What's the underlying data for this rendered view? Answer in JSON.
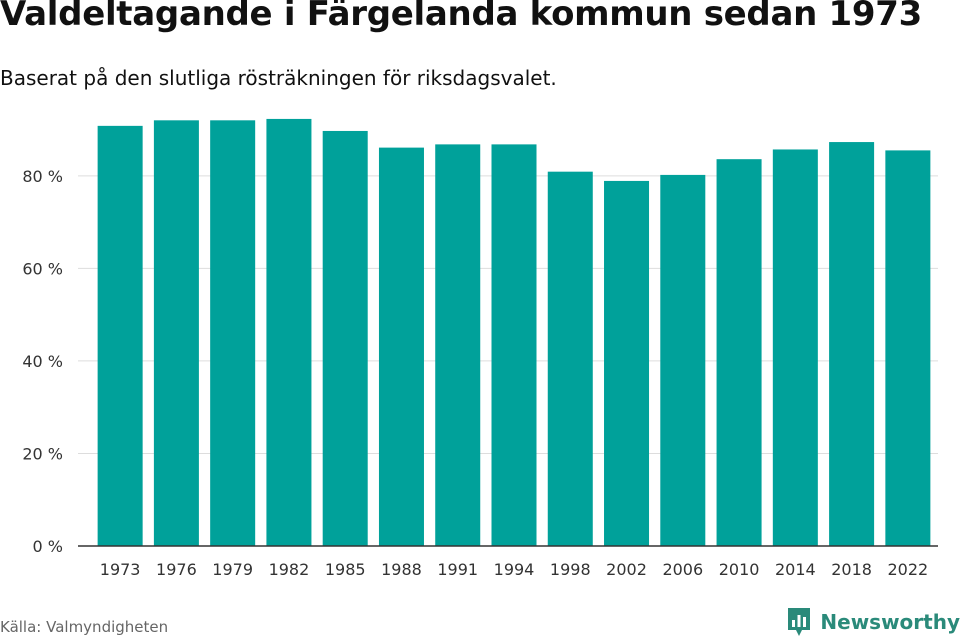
{
  "header": {
    "title": "Valdeltagande i Färgelanda kommun sedan 1973",
    "subtitle": "Baserat på den slutliga rösträkningen för riksdagsvalet."
  },
  "footer": {
    "source": "Källa: Valmyndigheten",
    "brand": "Newsworthy",
    "brand_icon": "newsworthy-logo-icon"
  },
  "colors": {
    "bar": "#00a19a",
    "grid": "#dddddd",
    "axis": "#333333",
    "brand": "#2a8a7a"
  },
  "chart_data": {
    "type": "bar",
    "title": "Valdeltagande i Färgelanda kommun sedan 1973",
    "subtitle": "Baserat på den slutliga rösträkningen för riksdagsvalet.",
    "categories": [
      "1973",
      "1976",
      "1979",
      "1982",
      "1985",
      "1988",
      "1991",
      "1994",
      "1998",
      "2002",
      "2006",
      "2010",
      "2014",
      "2018",
      "2022"
    ],
    "values": [
      90.8,
      92.0,
      92.0,
      92.3,
      89.7,
      86.1,
      86.8,
      86.8,
      80.9,
      78.9,
      80.2,
      83.6,
      85.7,
      87.3,
      85.5
    ],
    "ylim": [
      0,
      92.5
    ],
    "yticks": [
      0,
      20,
      40,
      60,
      80
    ],
    "ytick_labels": [
      "0 %",
      "20 %",
      "40 %",
      "60 %",
      "80 %"
    ],
    "grid": true,
    "legend": "none"
  }
}
